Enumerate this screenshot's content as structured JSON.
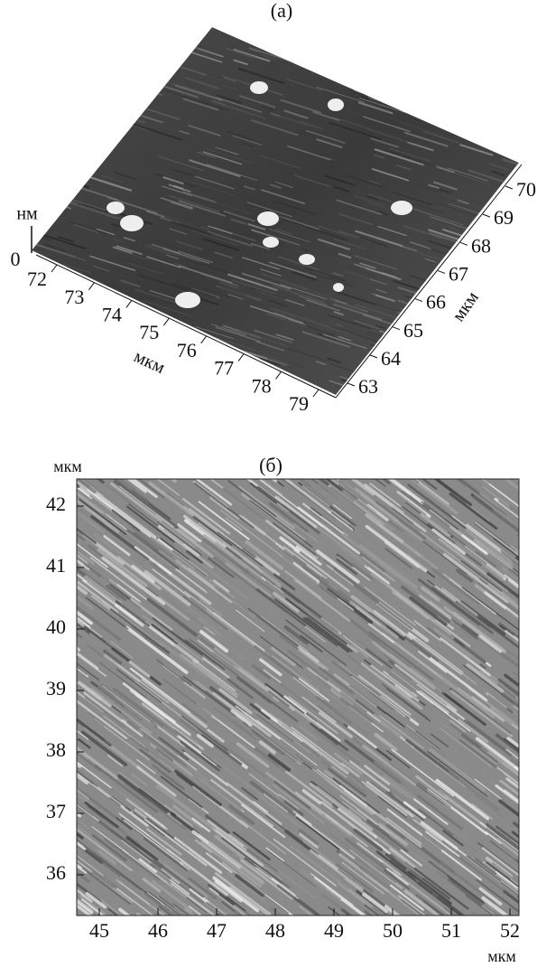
{
  "panels": [
    {
      "label": "(а)",
      "z_axis_label": "нм",
      "z_ticks": [
        0
      ],
      "x_ticks": [
        72,
        73,
        74,
        75,
        76,
        77,
        78,
        79
      ],
      "x_axis_label": "мкм",
      "y_ticks": [
        63,
        64,
        65,
        66,
        67,
        68,
        69,
        70
      ],
      "y_axis_label": "мкм"
    },
    {
      "label": "(б)",
      "y_axis_label": "мкм",
      "y_ticks": [
        36,
        37,
        38,
        39,
        40,
        41,
        42
      ],
      "x_ticks": [
        45,
        46,
        47,
        48,
        49,
        50,
        51,
        52
      ],
      "x_axis_label": "мкм"
    }
  ]
}
